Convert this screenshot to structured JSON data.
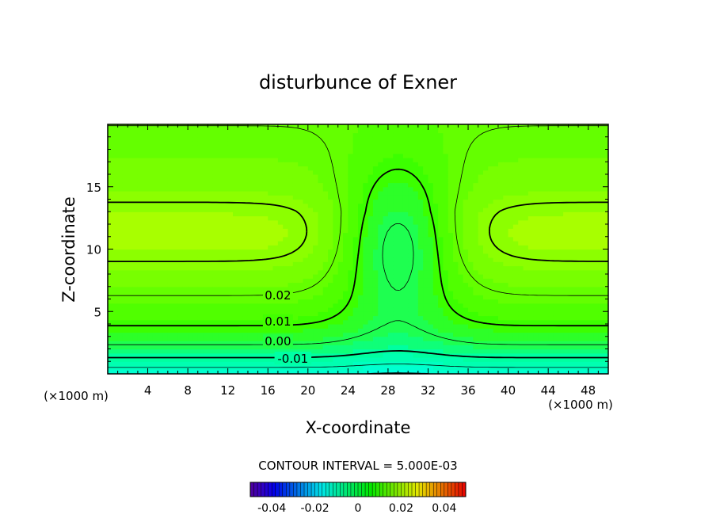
{
  "chart_data": {
    "type": "contour",
    "title": "disturbunce of Exner",
    "xlabel": "X-coordinate",
    "ylabel": "Z-coordinate",
    "x_unit_label": "(×1000 m)",
    "z_unit_label": "(×1000 m)",
    "xlim": [
      0,
      50
    ],
    "ylim": [
      0,
      20
    ],
    "x_ticks": [
      4,
      8,
      12,
      16,
      20,
      24,
      28,
      32,
      36,
      40,
      44,
      48
    ],
    "y_ticks": [
      5,
      10,
      15
    ],
    "contour_interval_text": "CONTOUR INTERVAL = 5.000E-03",
    "contour_interval": 0.005,
    "contour_labels": [
      {
        "text": "0.02",
        "x": 17,
        "z": 6.3
      },
      {
        "text": "0.01",
        "x": 17,
        "z": 4.2
      },
      {
        "text": "0.00",
        "x": 17,
        "z": 2.6
      },
      {
        "text": "-0.01",
        "x": 18.5,
        "z": 1.2
      }
    ],
    "colorbar": {
      "min": -0.05,
      "max": 0.05,
      "ticks": [
        "-0.04",
        "-0.02",
        "0",
        "0.02",
        "0.04"
      ],
      "tick_values": [
        -0.04,
        -0.02,
        0,
        0.02,
        0.04
      ]
    },
    "field_description": "maximum ~0.03 near z=11 at x≈13 and x≈44; trough centred at x≈29; minimum ~-0.02 at bottom",
    "colors": {
      "min": "#00ffff",
      "mid": "#44ff00",
      "high": "#ffdd00",
      "max": "#ff9900"
    }
  }
}
